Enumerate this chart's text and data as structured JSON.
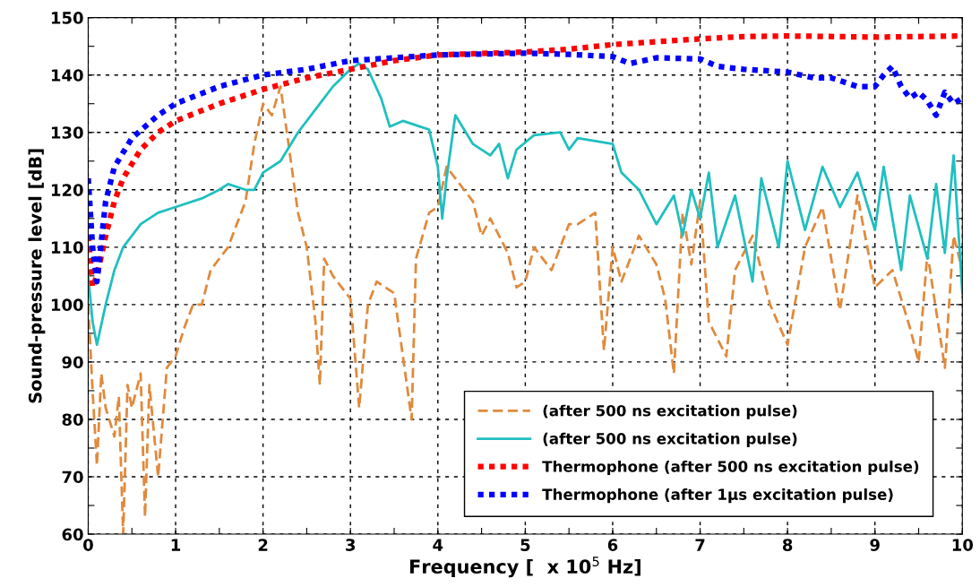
{
  "chart_data": {
    "type": "line",
    "xlabel": "Frequency [  x 10$^{5}$ Hz]",
    "ylabel": "Sound-pressure level [dB]",
    "xlim": [
      0,
      10
    ],
    "ylim": [
      60,
      150
    ],
    "xticks": [
      0,
      {
        "value": 0.5,
        "label": null
      },
      1,
      {
        "value": 1.5,
        "label": null
      },
      2,
      {
        "value": 2.5,
        "label": null
      },
      3,
      {
        "value": 3.5,
        "label": null
      },
      4,
      {
        "value": 4.5,
        "label": null
      },
      5,
      {
        "value": 5.5,
        "label": null
      },
      6,
      {
        "value": 6.5,
        "label": null
      },
      7,
      {
        "value": 7.5,
        "label": null
      },
      8,
      {
        "value": 8.5,
        "label": null
      },
      9,
      {
        "value": 9.5,
        "label": null
      },
      10
    ],
    "yticks": [
      60,
      {
        "value": 65,
        "label": null
      },
      70,
      {
        "value": 75,
        "label": null
      },
      80,
      {
        "value": 85,
        "label": null
      },
      90,
      {
        "value": 95,
        "label": null
      },
      100,
      {
        "value": 105,
        "label": null
      },
      110,
      {
        "value": 115,
        "label": null
      },
      120,
      {
        "value": 125,
        "label": null
      },
      130,
      {
        "value": 135,
        "label": null
      },
      140,
      {
        "value": 145,
        "label": null
      },
      150
    ],
    "grid": true,
    "legend": "bottom right",
    "marker": "none",
    "series": [
      {
        "name": "(after 500 ns excitation pulse)",
        "color": "#e08a3c",
        "line_style": "dashed",
        "x": [
          0,
          0.05,
          0.1,
          0.15,
          0.2,
          0.3,
          0.35,
          0.4,
          0.45,
          0.5,
          0.6,
          0.65,
          0.7,
          0.8,
          0.9,
          1.0,
          1.1,
          1.2,
          1.3,
          1.4,
          1.6,
          1.8,
          1.9,
          2.0,
          2.1,
          2.2,
          2.3,
          2.4,
          2.5,
          2.6,
          2.65,
          2.7,
          2.8,
          3.0,
          3.1,
          3.2,
          3.3,
          3.5,
          3.7,
          3.75,
          3.9,
          4.0,
          4.1,
          4.3,
          4.4,
          4.5,
          4.6,
          4.8,
          4.9,
          5.0,
          5.1,
          5.3,
          5.5,
          5.6,
          5.8,
          5.9,
          6.0,
          6.1,
          6.3,
          6.5,
          6.6,
          6.7,
          6.8,
          6.9,
          7.0,
          7.1,
          7.3,
          7.4,
          7.6,
          7.8,
          8.0,
          8.2,
          8.4,
          8.6,
          8.8,
          9.0,
          9.2,
          9.4,
          9.5,
          9.6,
          9.8,
          9.9,
          10.0
        ],
        "values": [
          100,
          85,
          72,
          88,
          82,
          77,
          84,
          60,
          86,
          82,
          88,
          63,
          86,
          70,
          89,
          91,
          96,
          100,
          100,
          106,
          110,
          118,
          128,
          135,
          133,
          138,
          127,
          116,
          110,
          97,
          86,
          108,
          105,
          101,
          82,
          100,
          104,
          102,
          80,
          108,
          116,
          117,
          124,
          120,
          118,
          112,
          115,
          109,
          103,
          104,
          110,
          106,
          114,
          114,
          116,
          92,
          110,
          104,
          112,
          107,
          101,
          88,
          116,
          107,
          118,
          97,
          91,
          106,
          112,
          100,
          93,
          110,
          117,
          99,
          119,
          103,
          106,
          96,
          90,
          109,
          89,
          112,
          106
        ]
      },
      {
        "name": "(after 500 ns excitation pulse)",
        "color": "#20bfc0",
        "line_style": "solid",
        "x": [
          0,
          0.05,
          0.1,
          0.2,
          0.3,
          0.4,
          0.6,
          0.8,
          1.0,
          1.3,
          1.5,
          1.6,
          1.8,
          1.9,
          2.0,
          2.2,
          2.4,
          2.6,
          2.8,
          3.0,
          3.1,
          3.2,
          3.35,
          3.45,
          3.6,
          3.8,
          3.9,
          4.0,
          4.05,
          4.1,
          4.2,
          4.4,
          4.6,
          4.7,
          4.8,
          4.9,
          5.1,
          5.4,
          5.5,
          5.6,
          6.0,
          6.1,
          6.3,
          6.5,
          6.7,
          6.8,
          6.9,
          7.0,
          7.1,
          7.2,
          7.4,
          7.6,
          7.7,
          7.9,
          8.0,
          8.2,
          8.4,
          8.6,
          8.8,
          9.0,
          9.1,
          9.3,
          9.4,
          9.6,
          9.7,
          9.8,
          9.9,
          10.0
        ],
        "values": [
          105,
          97,
          93,
          100,
          106,
          110,
          114,
          116,
          117,
          118.5,
          120,
          121,
          120,
          120,
          123,
          125,
          130,
          134,
          138,
          141,
          142,
          141,
          136,
          131,
          132,
          131,
          130.5,
          124,
          115,
          122,
          133,
          128,
          126,
          128,
          122,
          127,
          129.5,
          130,
          127,
          129,
          128,
          123,
          120,
          114,
          119,
          112,
          120,
          115,
          123,
          110,
          119,
          104,
          122,
          110,
          125,
          113,
          124,
          117,
          123,
          113,
          124,
          106,
          119,
          108,
          121,
          109,
          126,
          102
        ]
      },
      {
        "name": "Thermophone (after 500 ns excitation pulse)",
        "color": "#ff0000",
        "line_style": "dotted",
        "x": [
          0,
          0.05,
          0.1,
          0.2,
          0.3,
          0.4,
          0.6,
          0.8,
          1.0,
          1.5,
          2.0,
          2.5,
          3.0,
          3.5,
          4.0,
          5.0,
          5.5,
          6.0,
          7.0,
          7.5,
          8.0,
          9.0,
          10.0
        ],
        "values": [
          112,
          103,
          105,
          112,
          118,
          122,
          127,
          130,
          132,
          135,
          137.5,
          139.5,
          141,
          142.5,
          143.5,
          144,
          144.5,
          145.3,
          146.3,
          146.7,
          146.8,
          146.6,
          146.8
        ]
      },
      {
        "name": "Thermophone (after 1µs excitation pulse)",
        "color": "#0000ff",
        "line_style": "dotted",
        "x": [
          0,
          0.05,
          0.1,
          0.2,
          0.3,
          0.5,
          0.8,
          1.0,
          1.5,
          2.0,
          2.5,
          3.0,
          3.5,
          4.0,
          5.0,
          5.5,
          6.0,
          6.2,
          6.5,
          7.0,
          7.2,
          7.5,
          8.0,
          8.3,
          8.5,
          8.8,
          9.0,
          9.1,
          9.2,
          9.3,
          9.4,
          9.5,
          9.6,
          9.7,
          9.8,
          9.9,
          10.0
        ],
        "values": [
          122,
          110,
          104,
          118,
          124,
          129,
          133,
          135,
          138,
          140,
          141,
          142.5,
          143,
          143.5,
          143.8,
          143.6,
          143.2,
          142,
          143,
          142.8,
          141.5,
          141,
          140.5,
          139.5,
          139.5,
          138,
          138,
          140,
          141.5,
          138,
          136,
          137,
          135.5,
          133,
          137,
          135,
          136
        ]
      }
    ]
  }
}
